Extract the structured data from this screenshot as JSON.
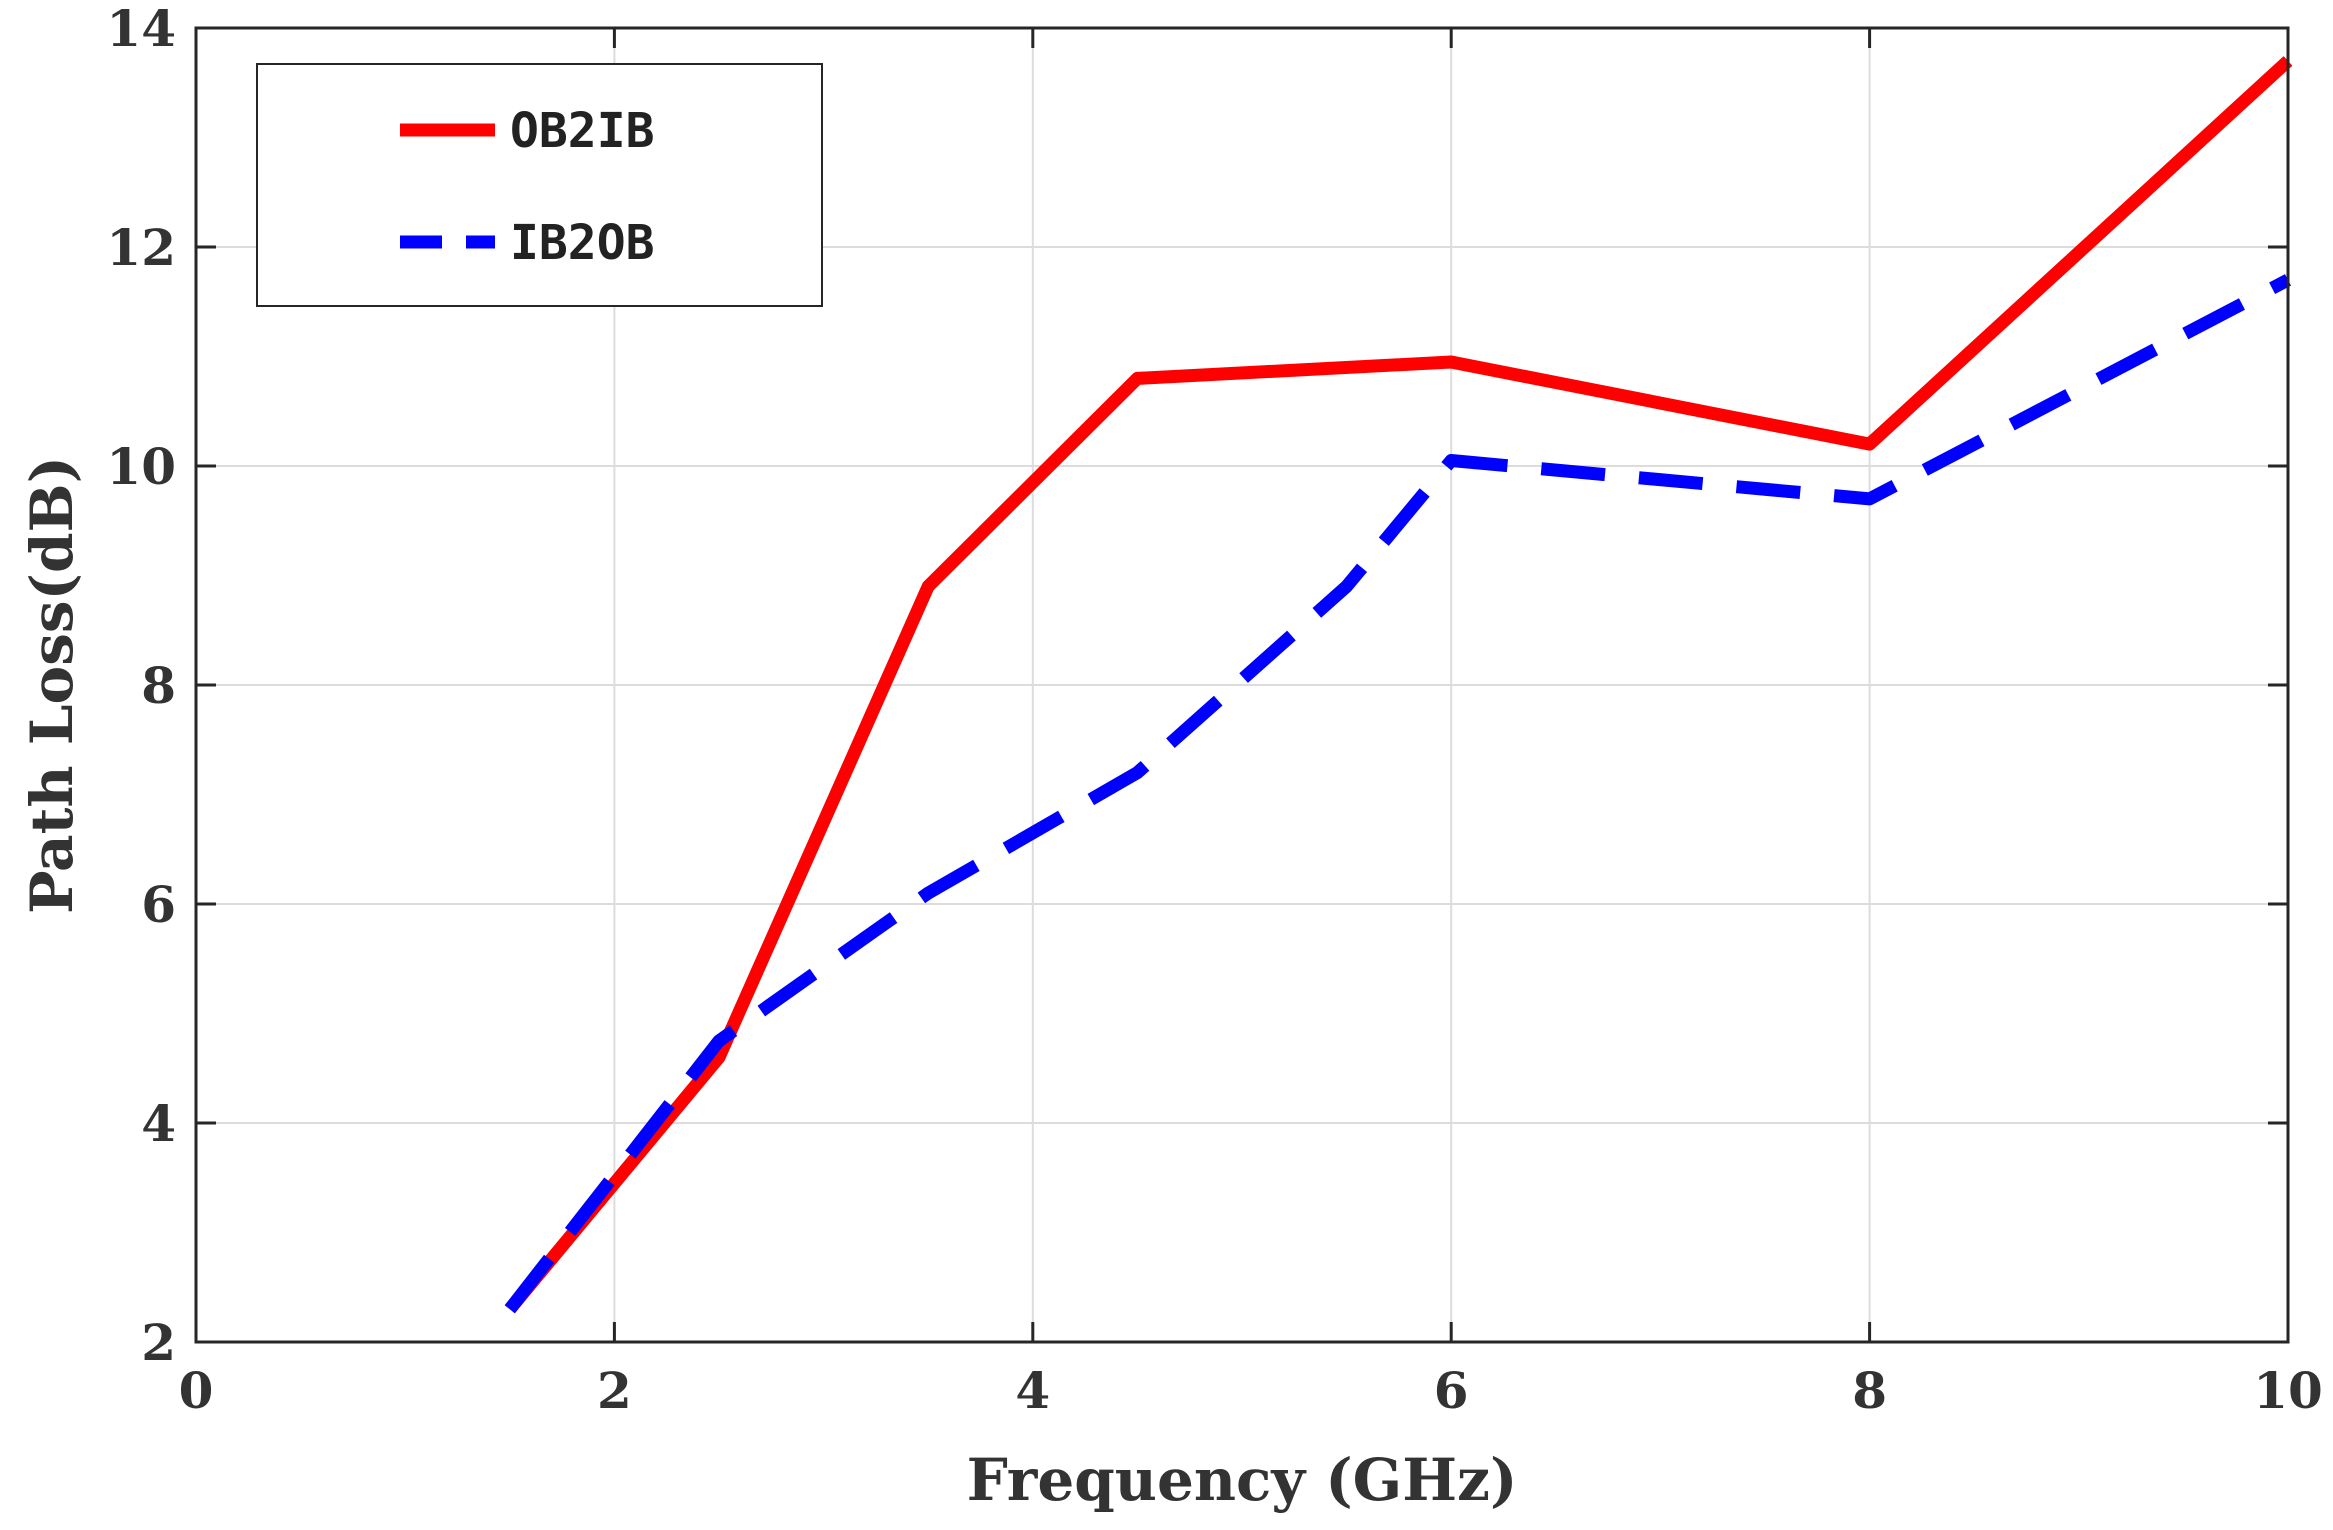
{
  "chart_data": {
    "type": "line",
    "xlabel": "Frequency (GHz)",
    "ylabel": "Path Loss(dB)",
    "xlim": [
      0,
      10
    ],
    "ylim": [
      2,
      14
    ],
    "x_ticks": [
      0,
      2,
      4,
      6,
      8,
      10
    ],
    "y_ticks": [
      2,
      4,
      6,
      8,
      10,
      12,
      14
    ],
    "x_tick_labels": [
      "0",
      "2",
      "4",
      "6",
      "8",
      "10"
    ],
    "y_tick_labels": [
      "2",
      "4",
      "6",
      "8",
      "10",
      "12",
      "14"
    ],
    "grid": true,
    "legend_position": "top-left",
    "series": [
      {
        "name": "OB2IB",
        "color": "#ff0000",
        "style": "solid",
        "x": [
          1.5,
          2.5,
          3.5,
          4.5,
          6,
          8,
          10
        ],
        "y": [
          2.3,
          4.6,
          8.9,
          10.8,
          10.95,
          10.2,
          13.7
        ]
      },
      {
        "name": "IB2OB",
        "color": "#0000ff",
        "style": "dashed",
        "x": [
          1.5,
          2.5,
          3.5,
          4.5,
          5.5,
          6,
          8,
          10
        ],
        "y": [
          2.3,
          4.75,
          6.1,
          7.2,
          8.9,
          10.05,
          9.7,
          11.7
        ]
      }
    ]
  }
}
